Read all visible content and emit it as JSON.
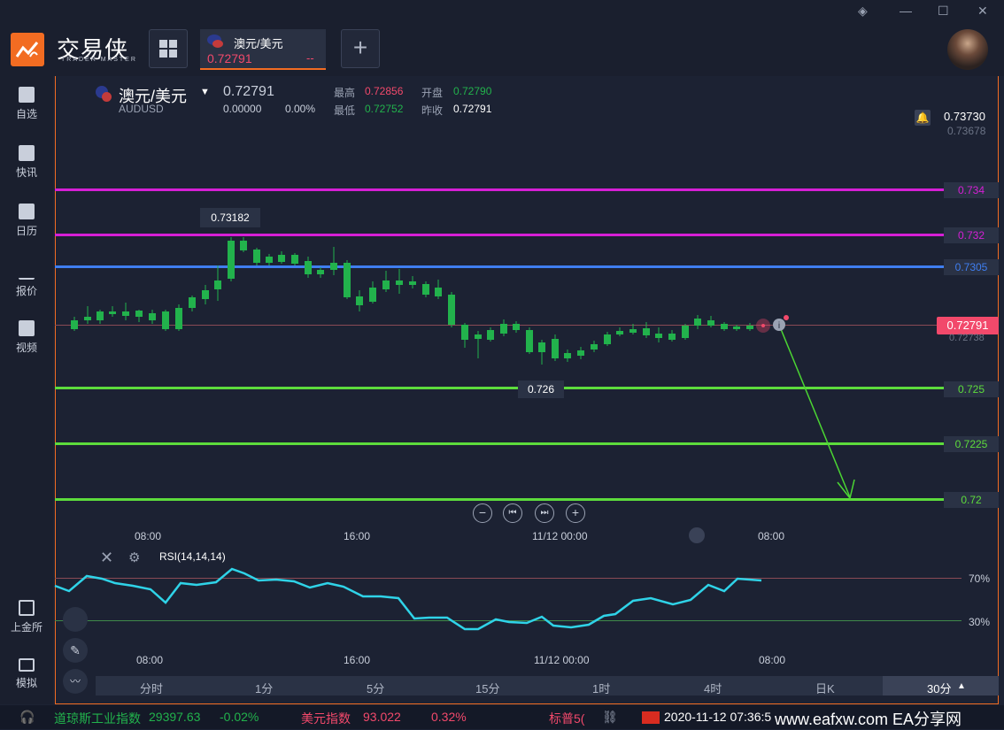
{
  "app": {
    "logo_name": "交易侠",
    "logo_sub": "TRADER MASTER",
    "tab_symbol": "澳元/美元",
    "tab_price": "0.72791",
    "tab_change": "--"
  },
  "sidebar": {
    "items": [
      {
        "label": "自选",
        "icon": "star-icon"
      },
      {
        "label": "快讯",
        "icon": "news-icon"
      },
      {
        "label": "日历",
        "icon": "calendar-icon"
      },
      {
        "label": "报价",
        "icon": "quote-chart-icon"
      },
      {
        "label": "视频",
        "icon": "video-icon"
      },
      {
        "label": "上金所",
        "icon": "exchange-icon"
      },
      {
        "label": "模拟",
        "icon": "wallet-icon"
      }
    ]
  },
  "header": {
    "symbol_cn": "澳元/美元",
    "symbol_code": "AUDUSD",
    "price": "0.72791",
    "change": "0.00000",
    "change_pct": "0.00%",
    "high_label": "最高",
    "high": "0.72856",
    "low_label": "最低",
    "low": "0.72752",
    "open_label": "开盘",
    "open": "0.72790",
    "prev_label": "昨收",
    "prev": "0.72791"
  },
  "price_axis": {
    "top": "0.73730",
    "top2": "0.73678",
    "current": "0.72791",
    "current_sub": "0.72738",
    "levels": [
      {
        "label": "0.734",
        "value": 0.734,
        "color": "#d61fd6"
      },
      {
        "label": "0.732",
        "value": 0.732,
        "color": "#d61fd6"
      },
      {
        "label": "0.7305",
        "value": 0.7305,
        "color": "#3f7ef0"
      },
      {
        "label": "0.725",
        "value": 0.725,
        "color": "#5ddc3c"
      },
      {
        "label": "0.7225",
        "value": 0.7225,
        "color": "#5ddc3c"
      },
      {
        "label": "0.72",
        "value": 0.72,
        "color": "#5ddc3c"
      }
    ]
  },
  "annotations": {
    "high_marker": "0.73182",
    "low_marker": "0.726"
  },
  "time_axis": [
    "08:00",
    "16:00",
    "11/12 00:00",
    "08:00"
  ],
  "rsi": {
    "title": "RSI(14,14,14)",
    "upper": "70%",
    "lower": "30%"
  },
  "timeframes": [
    "分时",
    "1分",
    "5分",
    "15分",
    "1时",
    "4时",
    "日K",
    "30分"
  ],
  "ticker": {
    "dow_label": "道琼斯工业指数",
    "dow_value": "29397.63",
    "dow_change": "-0.02%",
    "usd_label": "美元指数",
    "usd_value": "93.022",
    "usd_change": "0.32%",
    "sp_label": "标普5(",
    "datetime": "2020-11-12 07:36:5",
    "watermark": "www.eafxw.com EA分享网"
  },
  "colors": {
    "accent": "#f26c22",
    "up": "#f2496b",
    "down": "#22b24c",
    "rsi": "#2fd3e8"
  }
}
